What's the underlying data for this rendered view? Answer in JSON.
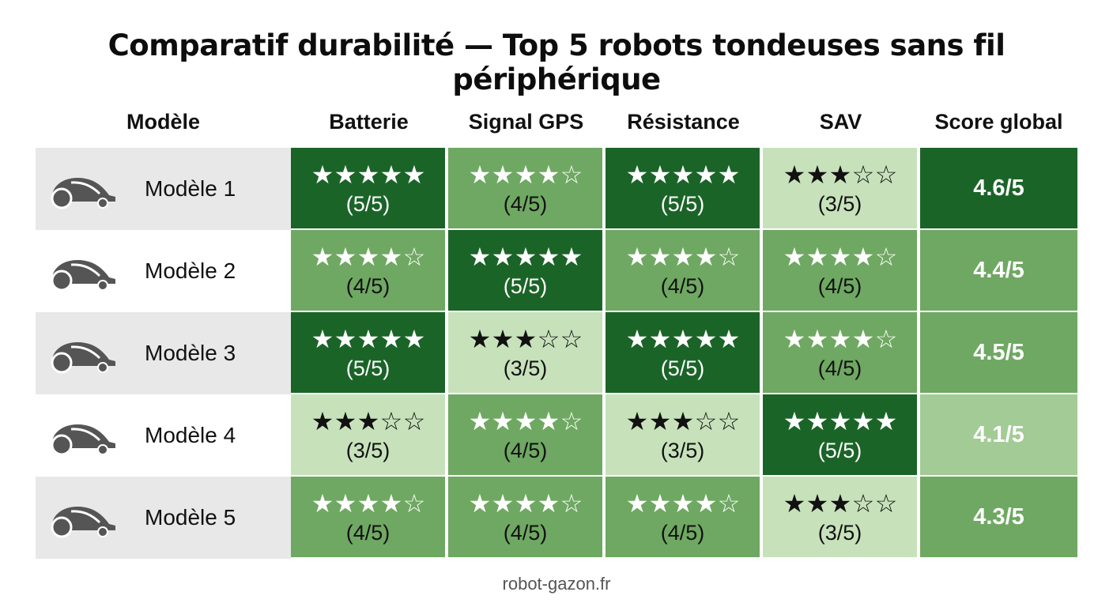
{
  "title": "Comparatif durabilité — Top 5 robots tondeuses sans fil périphérique",
  "footer": "robot-gazon.fr",
  "headers": [
    "Modèle",
    "Batterie",
    "Signal GPS",
    "Résistance",
    "SAV",
    "Score global"
  ],
  "colors": {
    "dark_green": "#1b6428",
    "medium_green": "#6fa862",
    "light_green": "#c7e2bb",
    "score_light": "#a3cb96",
    "model_cell_odd": "#e8e8e8",
    "mower_icon": "#555555"
  },
  "icons": {
    "model_icon": "robot-mower-icon"
  },
  "chart_data": {
    "type": "table",
    "title": "Comparatif durabilité — Top 5 robots tondeuses sans fil périphérique",
    "columns": [
      "Modèle",
      "Batterie",
      "Signal GPS",
      "Résistance",
      "SAV",
      "Score global"
    ],
    "rows": [
      {
        "model": "Modèle 1",
        "ratings": [
          5,
          4,
          5,
          3
        ],
        "labels": [
          "(5/5)",
          "(4/5)",
          "(5/5)",
          "(3/5)"
        ],
        "score": "4.6/5"
      },
      {
        "model": "Modèle 2",
        "ratings": [
          4,
          5,
          4,
          4
        ],
        "labels": [
          "(4/5)",
          "(5/5)",
          "(4/5)",
          "(4/5)"
        ],
        "score": "4.4/5"
      },
      {
        "model": "Modèle 3",
        "ratings": [
          5,
          3,
          5,
          4
        ],
        "labels": [
          "(5/5)",
          "(3/5)",
          "(5/5)",
          "(4/5)"
        ],
        "score": "4.5/5"
      },
      {
        "model": "Modèle 4",
        "ratings": [
          3,
          4,
          3,
          5
        ],
        "labels": [
          "(3/5)",
          "(4/5)",
          "(3/5)",
          "(5/5)"
        ],
        "score": "4.1/5"
      },
      {
        "model": "Modèle 5",
        "ratings": [
          4,
          4,
          4,
          3
        ],
        "labels": [
          "(4/5)",
          "(4/5)",
          "(4/5)",
          "(3/5)"
        ],
        "score": "4.3/5"
      }
    ],
    "max_rating": 5
  }
}
